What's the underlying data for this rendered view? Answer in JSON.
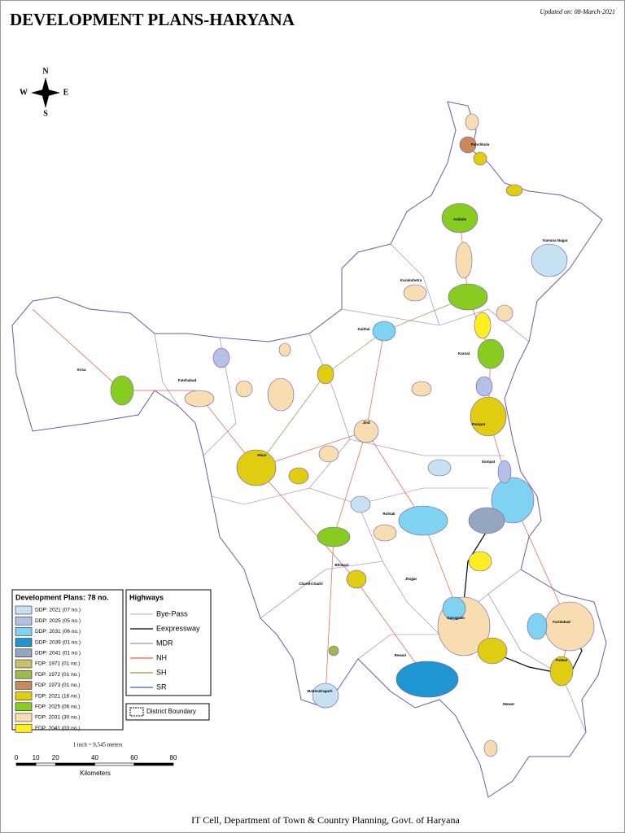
{
  "header": {
    "title": "DEVELOPMENT PLANS-HARYANA",
    "updated": "Updated on: 08-March-2021"
  },
  "compass": [
    "N",
    "E",
    "S",
    "W"
  ],
  "places": [
    "Panchkula",
    "Ambala",
    "Yamuna Nagar",
    "Kurukshetra",
    "Kaithal",
    "Karnal",
    "Panipat",
    "Sonipat",
    "Jind",
    "Hisar",
    "Fatehabad",
    "Sirsa",
    "Bhiwani",
    "Rohtak",
    "Jhajjar",
    "Charkhi Dadri",
    "Mahendragarh",
    "Rewari",
    "Gurugram",
    "Faridabad",
    "Palwal",
    "Mewat"
  ],
  "legend": {
    "title": "Development Plans: 78 no.",
    "items": [
      {
        "label": "DDP: 2021 (07 no.)",
        "color": "#c6e2f2"
      },
      {
        "label": "DDP: 2025 (05 no.)",
        "color": "#b4c0e6"
      },
      {
        "label": "DDP: 2031 (06 no.)",
        "color": "#7fd3f0"
      },
      {
        "label": "DDP: 2039 (01 no.)",
        "color": "#1f96d2"
      },
      {
        "label": "DDP: 2041 (01 no.)",
        "color": "#95a7bf"
      },
      {
        "label": "FDP: 1971 (01 no.)",
        "color": "#c8c06a"
      },
      {
        "label": "FDP: 1972 (01 no.)",
        "color": "#9fba4a"
      },
      {
        "label": "FDP: 1973 (01 no.)",
        "color": "#c88a5a"
      },
      {
        "label": "FDP: 2021 (16 no.)",
        "color": "#e0cc10"
      },
      {
        "label": "FDP: 2025 (06 no.)",
        "color": "#88cc22"
      },
      {
        "label": "FDP: 2031 (30 no.)",
        "color": "#f7ddb0"
      },
      {
        "label": "FDP: 2041 (03 no.)",
        "color": "#ffee22"
      }
    ]
  },
  "highways": {
    "title": "Highways",
    "items": [
      {
        "label": "Bye-Pass",
        "color": "#c8b8e0"
      },
      {
        "label": "Eexpressway",
        "color": "#000000"
      },
      {
        "label": "MDR",
        "color": "#9a8fb5"
      },
      {
        "label": "NH",
        "color": "#e06040"
      },
      {
        "label": "SH",
        "color": "#80a040"
      },
      {
        "label": "SR",
        "color": "#3060c0"
      }
    ],
    "boundary": "District Boundary"
  },
  "scale": {
    "note": "1 inch = 9,545 meters",
    "ticks": [
      0,
      10,
      20,
      40,
      60,
      80
    ],
    "unit": "Kilometers"
  },
  "footer": "IT Cell, Department of Town & Country Planning, Govt. of Haryana"
}
